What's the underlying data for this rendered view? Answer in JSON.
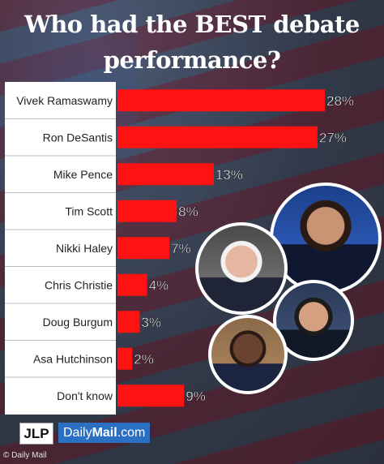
{
  "title": "Who had the BEST debate performance?",
  "chart_data": {
    "type": "bar",
    "orientation": "horizontal",
    "title": "Who had the BEST debate performance?",
    "categories": [
      "Vivek Ramaswamy",
      "Ron DeSantis",
      "Mike Pence",
      "Tim Scott",
      "Nikki Haley",
      "Chris Christie",
      "Doug Burgum",
      "Asa Hutchinson",
      "Don't know"
    ],
    "values": [
      28,
      27,
      13,
      8,
      7,
      4,
      3,
      2,
      9
    ],
    "value_labels": [
      "28%",
      "27%",
      "13%",
      "8%",
      "7%",
      "4%",
      "3%",
      "2%",
      "9%"
    ],
    "xlim": [
      0,
      28
    ],
    "grid": false,
    "bar_color": "#ff1212"
  },
  "branding": {
    "jlp": "JLP",
    "daily": "Daily",
    "mail": "Mail",
    "dotcom": ".com",
    "credit": "© Daily Mail"
  },
  "photos": [
    "vivek-ramaswamy-photo",
    "mike-pence-photo",
    "ron-desantis-photo",
    "tim-scott-photo"
  ]
}
